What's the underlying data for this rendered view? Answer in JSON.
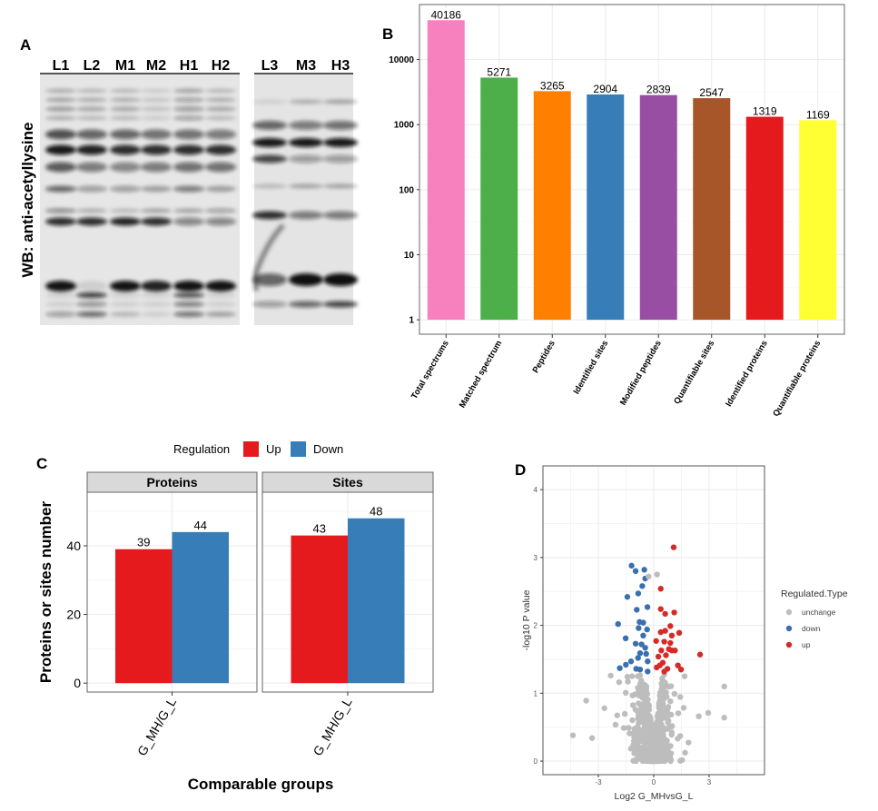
{
  "panels": {
    "a": {
      "letter": "A",
      "ylabel": "WB: anti-acetyllysine",
      "lanes_left": [
        "L1",
        "L2",
        "M1",
        "M2",
        "H1",
        "H2"
      ],
      "lanes_right": [
        "L3",
        "M3",
        "H3"
      ]
    },
    "b": {
      "letter": "B"
    },
    "c": {
      "letter": "C"
    },
    "d": {
      "letter": "D"
    }
  },
  "chart_data": [
    {
      "id": "b",
      "type": "bar",
      "yscale": "log10",
      "ylim": [
        0.6,
        70000
      ],
      "yticks": [
        "1",
        "10",
        "100",
        "1000",
        "10000"
      ],
      "ytick_values": [
        1,
        10,
        100,
        1000,
        10000
      ],
      "grid": true,
      "categories": [
        "Total spectrums",
        "Matched spectrum",
        "Peptides",
        "Identified sites",
        "Modified peptides",
        "Quantifiable sites",
        "Identified proteins",
        "Quantifiable proteins"
      ],
      "values": [
        40186,
        5271,
        3265,
        2904,
        2839,
        2547,
        1319,
        1169
      ],
      "labels": [
        "40186",
        "5271",
        "3265",
        "2904",
        "2839",
        "2547",
        "1319",
        "1169"
      ],
      "colors": [
        "#f781bf",
        "#4daf4a",
        "#ff7f00",
        "#377eb8",
        "#984ea3",
        "#a65628",
        "#e41a1c",
        "#ffff33"
      ]
    },
    {
      "id": "c",
      "type": "bar",
      "xlabel": "Comparable groups",
      "ylabel": "Proteins or sites number",
      "ylim": [
        -2.6,
        55.6
      ],
      "yticks": [
        "0",
        "20",
        "40"
      ],
      "ytick_values": [
        0,
        20,
        40
      ],
      "grid": true,
      "legend": {
        "title": "Regulation",
        "position": "top",
        "entries": [
          "Up",
          "Down"
        ],
        "colors": [
          "#e41a1c",
          "#377eb8"
        ]
      },
      "facets": [
        {
          "title": "Proteins",
          "category": "G_MH/G_L",
          "series": [
            {
              "name": "Up",
              "value": 39,
              "label": "39"
            },
            {
              "name": "Down",
              "value": 44,
              "label": "44"
            }
          ]
        },
        {
          "title": "Sites",
          "category": "G_MH/G_L",
          "series": [
            {
              "name": "Up",
              "value": 43,
              "label": "43"
            },
            {
              "name": "Down",
              "value": 48,
              "label": "48"
            }
          ]
        }
      ]
    },
    {
      "id": "d",
      "type": "scatter",
      "xlabel": "Log2 G_MHvsG_L",
      "ylabel": "-log10 P value",
      "xlim": [
        -6,
        6
      ],
      "ylim": [
        -0.2,
        4.35
      ],
      "xticks": [
        "-3",
        "0",
        "3"
      ],
      "xtick_values": [
        -3,
        0,
        3
      ],
      "yticks": [
        "0",
        "1",
        "2",
        "3",
        "4"
      ],
      "ytick_values": [
        0,
        1,
        2,
        3,
        4
      ],
      "grid": true,
      "legend": {
        "title": "Regulated.Type",
        "position": "right",
        "entries": [
          "unchange",
          "down",
          "up"
        ],
        "colors": [
          "#bdbdbd",
          "#3a6fb0",
          "#d62a28"
        ]
      },
      "series": [
        {
          "name": "up",
          "points": [
            [
              1.08,
              3.15
            ],
            [
              0.38,
              2.54
            ],
            [
              0.38,
              2.24
            ],
            [
              0.62,
              2.17
            ],
            [
              1.11,
              2.19
            ],
            [
              0.9,
              1.99
            ],
            [
              0.62,
              1.92
            ],
            [
              1.38,
              1.89
            ],
            [
              0.98,
              1.85
            ],
            [
              0.38,
              1.9
            ],
            [
              0.13,
              1.77
            ],
            [
              0.57,
              1.76
            ],
            [
              0.82,
              1.65
            ],
            [
              0.41,
              1.63
            ],
            [
              0.98,
              1.63
            ],
            [
              0.66,
              1.56
            ],
            [
              2.51,
              1.57
            ],
            [
              0.25,
              1.54
            ],
            [
              0.49,
              1.45
            ],
            [
              0.33,
              1.41
            ],
            [
              1.31,
              1.41
            ],
            [
              1.48,
              1.35
            ],
            [
              0.74,
              1.36
            ],
            [
              0.16,
              1.38
            ],
            [
              0.57,
              1.32
            ],
            [
              0.9,
              1.74
            ],
            [
              1.15,
              1.63
            ]
          ]
        },
        {
          "name": "down",
          "points": [
            [
              -1.2,
              2.88
            ],
            [
              -0.98,
              2.8
            ],
            [
              -0.51,
              2.82
            ],
            [
              -0.46,
              2.69
            ],
            [
              -0.62,
              2.58
            ],
            [
              -0.84,
              2.47
            ],
            [
              -1.43,
              2.42
            ],
            [
              -0.34,
              2.27
            ],
            [
              -0.92,
              2.23
            ],
            [
              -1.93,
              2.02
            ],
            [
              -0.77,
              2.05
            ],
            [
              -0.57,
              2.04
            ],
            [
              -0.82,
              1.96
            ],
            [
              -0.36,
              1.94
            ],
            [
              -0.57,
              1.85
            ],
            [
              -1.52,
              1.81
            ],
            [
              -0.98,
              1.73
            ],
            [
              -0.66,
              1.72
            ],
            [
              -0.46,
              1.67
            ],
            [
              -0.74,
              1.59
            ],
            [
              -0.41,
              1.58
            ],
            [
              -0.85,
              1.52
            ],
            [
              -1.23,
              1.47
            ],
            [
              -0.33,
              1.47
            ],
            [
              -1.51,
              1.42
            ],
            [
              -1.84,
              1.37
            ],
            [
              -0.95,
              1.36
            ],
            [
              -0.74,
              1.35
            ],
            [
              -0.33,
              1.32
            ]
          ]
        },
        {
          "name": "unchange",
          "points": [
            [
              -4.38,
              0.38
            ],
            [
              -3.66,
              0.89
            ],
            [
              -2.67,
              0.78
            ],
            [
              -2.33,
              1.26
            ],
            [
              -3.34,
              0.34
            ],
            [
              3.82,
              1.1
            ],
            [
              3.82,
              0.64
            ],
            [
              2.95,
              0.71
            ],
            [
              2.44,
              0.66
            ],
            [
              0.18,
              2.75
            ],
            [
              -0.28,
              2.72
            ],
            [
              1.67,
              1.25
            ]
          ]
        }
      ]
    }
  ]
}
